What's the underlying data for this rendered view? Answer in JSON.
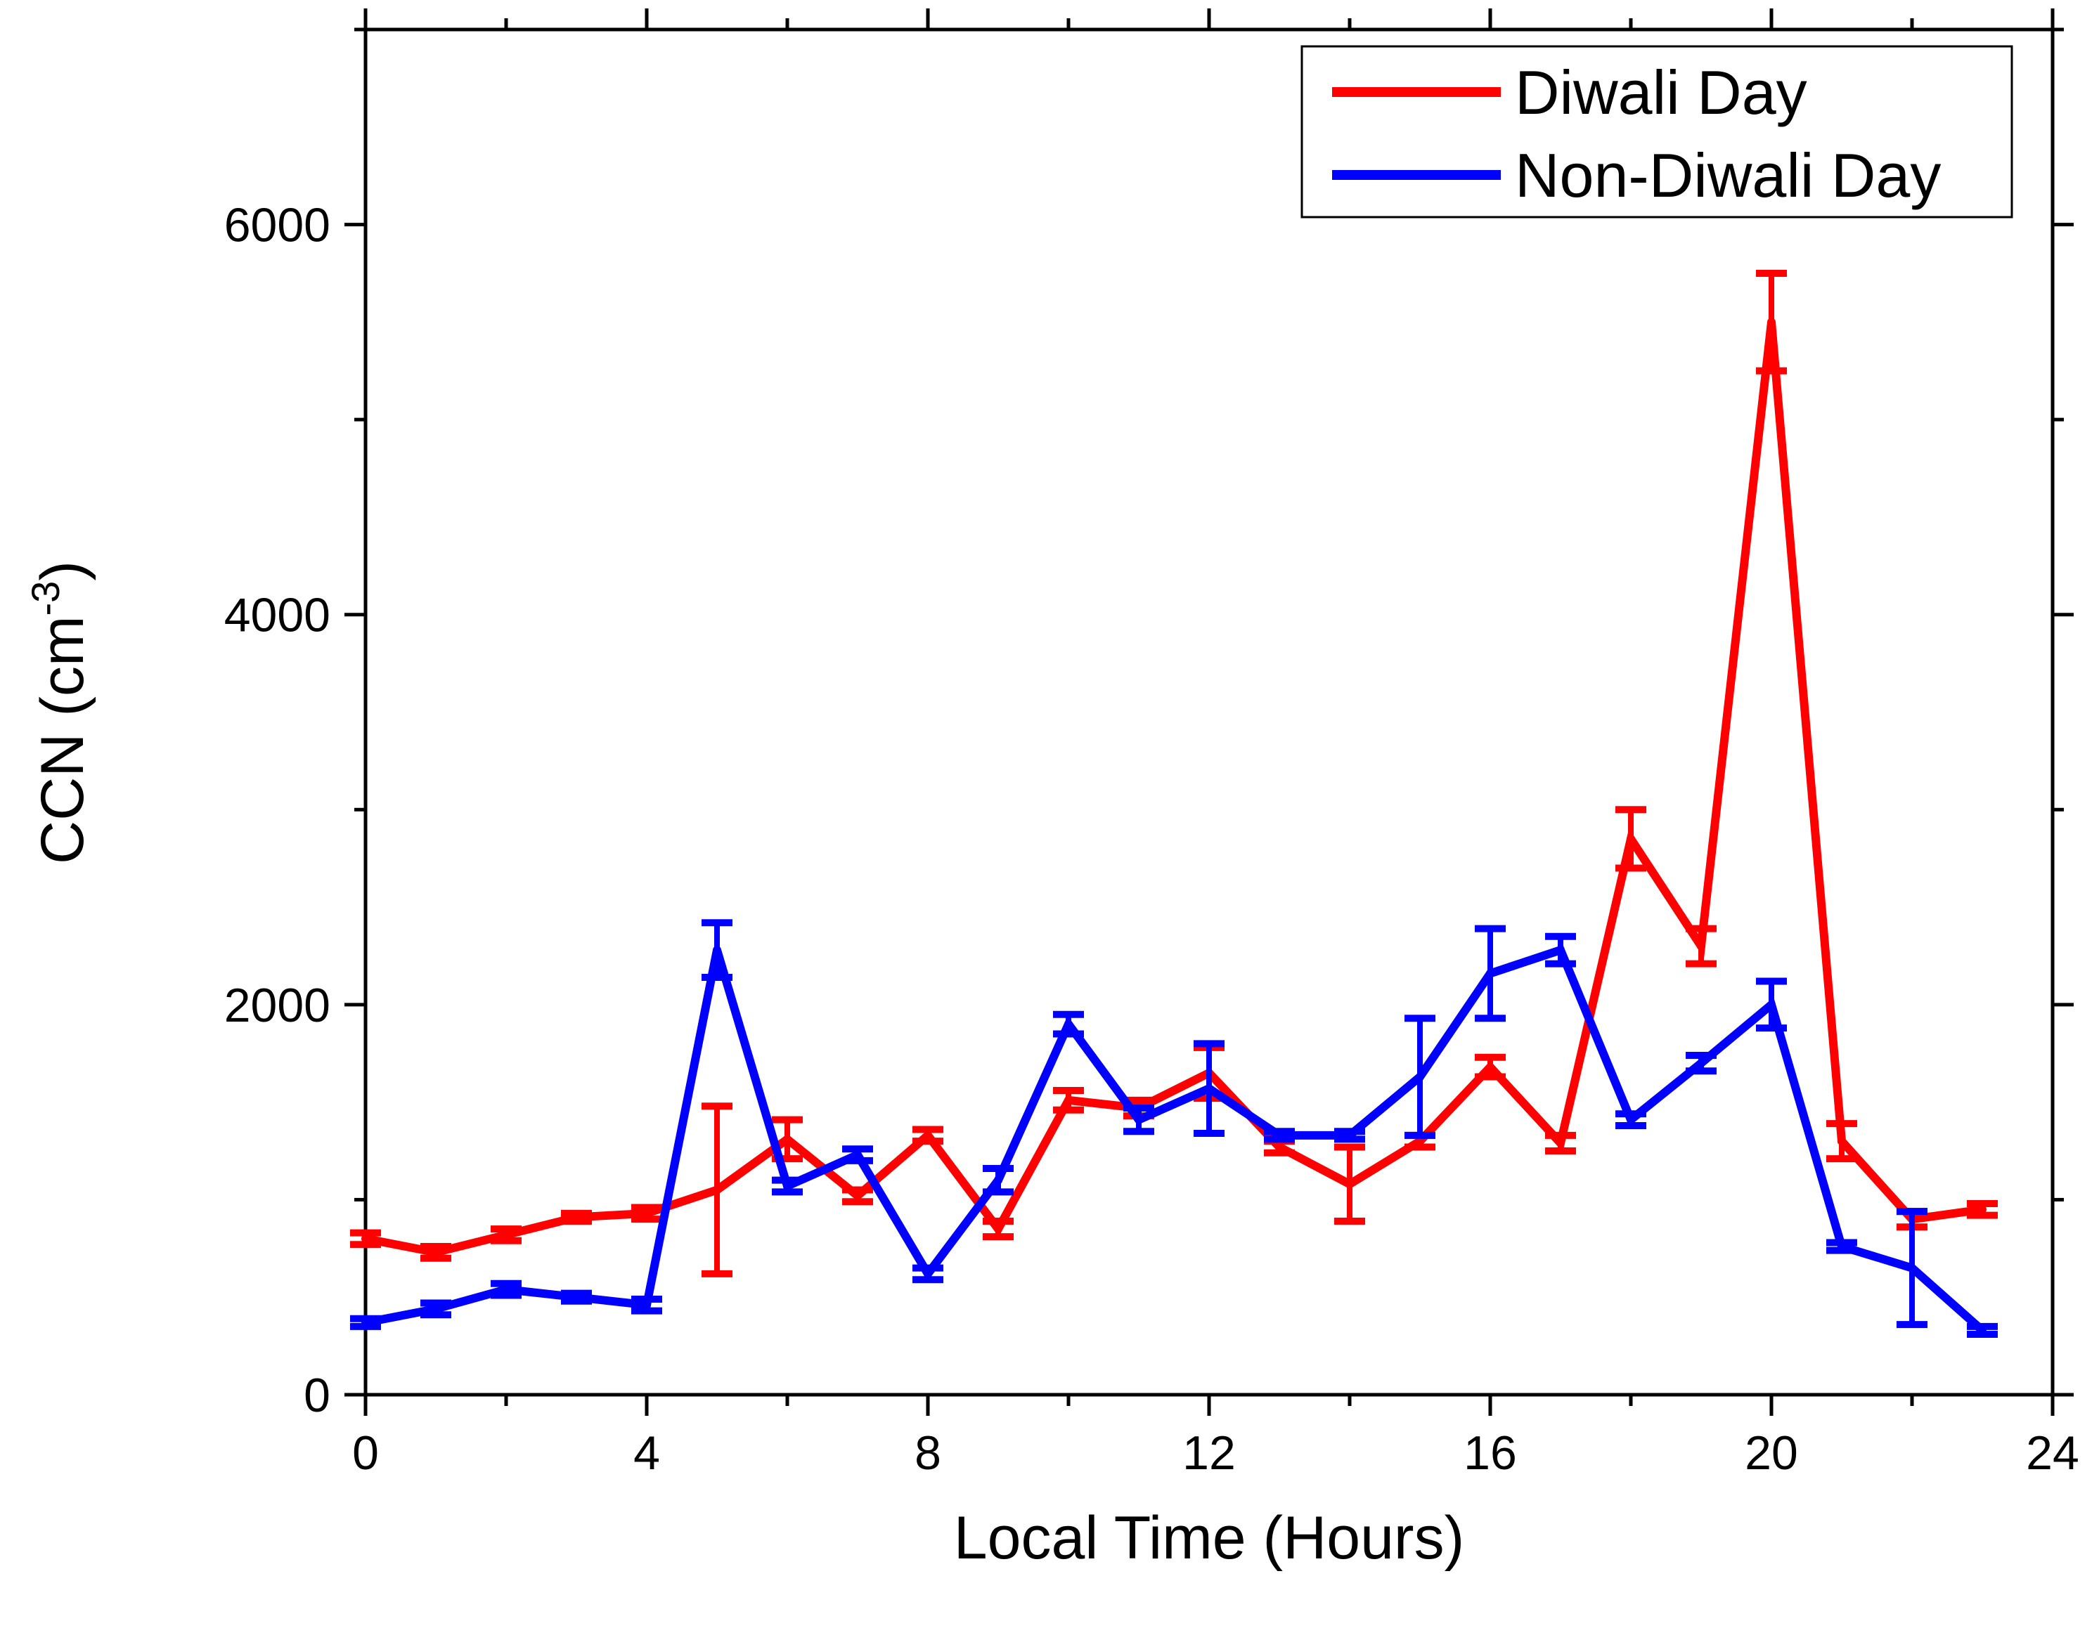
{
  "chart_data": {
    "type": "line",
    "title": "",
    "xlabel": "Local Time (Hours)",
    "ylabel_main": "CCN (cm",
    "ylabel_sup": "-3",
    "ylabel_close": ")",
    "xlim": [
      0,
      24
    ],
    "ylim": [
      0,
      7000
    ],
    "xticks": [
      0,
      4,
      8,
      12,
      16,
      20,
      24
    ],
    "yticks": [
      0,
      2000,
      4000,
      6000
    ],
    "grid": false,
    "legend_position": "top-right",
    "x": [
      0,
      1,
      2,
      3,
      4,
      5,
      6,
      7,
      8,
      9,
      10,
      11,
      12,
      13,
      14,
      15,
      16,
      17,
      18,
      19,
      20,
      21,
      22,
      23
    ],
    "series": [
      {
        "name": "Diwali Day",
        "color": "#ff0000",
        "values": [
          800,
          730,
          820,
          910,
          930,
          1050,
          1310,
          1020,
          1330,
          850,
          1510,
          1470,
          1650,
          1270,
          1080,
          1300,
          1680,
          1290,
          2850,
          2300,
          5500,
          1300,
          900,
          950
        ],
        "errors": [
          30,
          30,
          30,
          20,
          30,
          430,
          100,
          30,
          30,
          40,
          50,
          40,
          130,
          30,
          190,
          30,
          50,
          40,
          150,
          90,
          250,
          90,
          40,
          30
        ]
      },
      {
        "name": "Non-Diwali Day",
        "color": "#0000ff",
        "values": [
          370,
          440,
          540,
          500,
          460,
          2280,
          1070,
          1230,
          620,
          1100,
          1900,
          1410,
          1570,
          1330,
          1330,
          1630,
          2160,
          2280,
          1410,
          1700,
          2000,
          760,
          650,
          330
        ],
        "errors": [
          20,
          30,
          30,
          20,
          30,
          140,
          30,
          30,
          30,
          60,
          50,
          60,
          230,
          20,
          20,
          300,
          230,
          70,
          30,
          40,
          120,
          20,
          290,
          20
        ]
      }
    ]
  }
}
